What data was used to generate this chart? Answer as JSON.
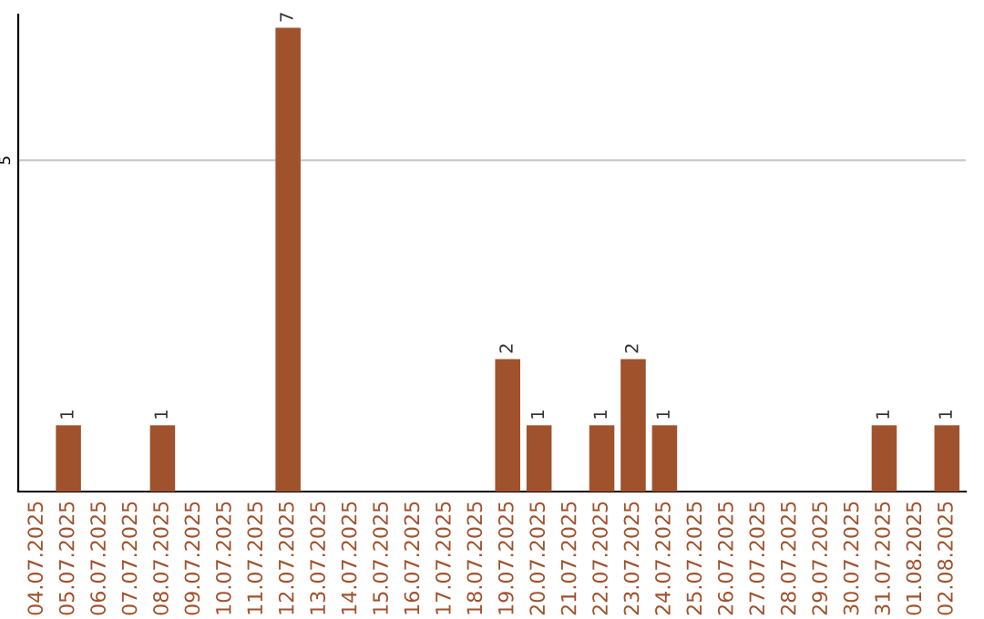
{
  "chart_data": {
    "type": "bar",
    "categories": [
      "04.07.2025",
      "05.07.2025",
      "06.07.2025",
      "07.07.2025",
      "08.07.2025",
      "09.07.2025",
      "10.07.2025",
      "11.07.2025",
      "12.07.2025",
      "13.07.2025",
      "14.07.2025",
      "15.07.2025",
      "16.07.2025",
      "17.07.2025",
      "18.07.2025",
      "19.07.2025",
      "20.07.2025",
      "21.07.2025",
      "22.07.2025",
      "23.07.2025",
      "24.07.2025",
      "25.07.2025",
      "26.07.2025",
      "27.07.2025",
      "28.07.2025",
      "29.07.2025",
      "30.07.2025",
      "31.07.2025",
      "01.08.2025",
      "02.08.2025"
    ],
    "values": [
      0,
      1,
      0,
      0,
      1,
      0,
      0,
      0,
      7,
      0,
      0,
      0,
      0,
      0,
      0,
      2,
      1,
      0,
      1,
      2,
      1,
      0,
      0,
      0,
      0,
      0,
      0,
      1,
      0,
      1
    ],
    "value_labels": [
      null,
      "1",
      null,
      null,
      "1",
      null,
      null,
      null,
      "7",
      null,
      null,
      null,
      null,
      null,
      null,
      "2",
      "1",
      null,
      "1",
      "2",
      "1",
      null,
      null,
      null,
      null,
      null,
      null,
      "1",
      null,
      "1"
    ],
    "color": "#a0522d",
    "ylim": [
      0,
      7.2
    ],
    "yticks": [
      5
    ],
    "grid": "y"
  }
}
